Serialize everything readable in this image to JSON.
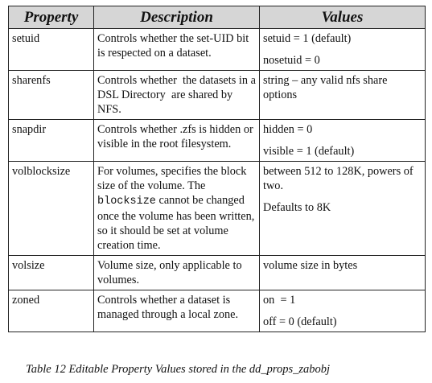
{
  "table": {
    "headers": {
      "property": "Property",
      "description": "Description",
      "values": "Values"
    },
    "rows": [
      {
        "property": "setuid",
        "description": "Controls whether the set-UID bit is respected on a dataset.",
        "values": [
          "setuid = 1 (default)",
          "nosetuid = 0"
        ]
      },
      {
        "property": "sharenfs",
        "description": "Controls whether  the datasets in a DSL Directory  are shared by NFS.",
        "values": [
          "string – any valid nfs share options"
        ]
      },
      {
        "property": "snapdir",
        "description": "Controls whether .zfs is hidden or visible in the root filesystem.",
        "values": [
          "hidden = 0",
          "visible = 1 (default)"
        ]
      },
      {
        "property": "volblocksize",
        "description_before": "For volumes, specifies the block size of the volume. The ",
        "description_code": "blocksize",
        "description_after": " cannot be changed once the volume has been written, so it should be set at volume creation time.",
        "values": [
          "between 512 to 128K, powers of two.",
          "Defaults to 8K"
        ]
      },
      {
        "property": "volsize",
        "description": "Volume size, only applicable to volumes.",
        "values": [
          "volume size in bytes"
        ]
      },
      {
        "property": "zoned",
        "description": "Controls whether a dataset is managed through a local zone.",
        "values": [
          "on  = 1",
          "off = 0 (default)"
        ]
      }
    ]
  },
  "caption": "Table 12 Editable Property Values stored in the dd_props_zabobj"
}
